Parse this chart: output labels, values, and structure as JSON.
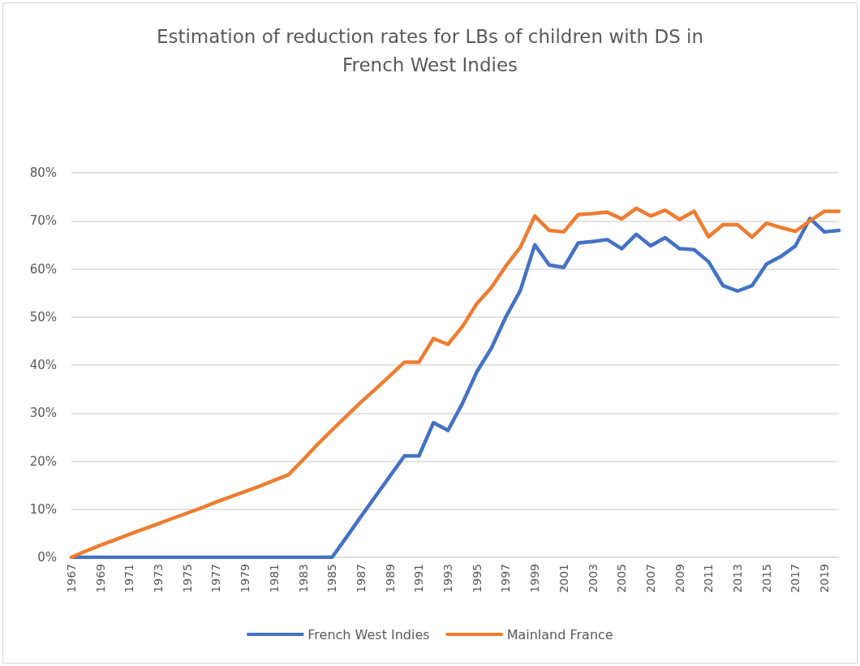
{
  "chart_data": {
    "type": "line",
    "title": "Estimation of reduction rates for LBs of children with DS in\nFrench West Indies",
    "categories": [
      "1967",
      null,
      "1969",
      null,
      "1971",
      null,
      "1973",
      null,
      "1975",
      null,
      "1977",
      null,
      "1979",
      null,
      "1981",
      null,
      "1983",
      null,
      "1985",
      null,
      "1987",
      null,
      "1989",
      null,
      "1991",
      null,
      "1993",
      null,
      "1995",
      null,
      "1997",
      null,
      "1999",
      null,
      "2001",
      null,
      "2003",
      null,
      "2005",
      null,
      "2007",
      null,
      "2009",
      null,
      "2011",
      null,
      "2013",
      null,
      "2015",
      null,
      "2017",
      null,
      "2019",
      null
    ],
    "series": [
      {
        "name": "French West Indies",
        "color": "#4472c4",
        "values": [
          0,
          0,
          0,
          0,
          0,
          0,
          0,
          0,
          0,
          0,
          0,
          0,
          0,
          0,
          0,
          0,
          0,
          0,
          0,
          4.2,
          8.5,
          12.7,
          16.9,
          21.1,
          21.1,
          28,
          26.4,
          32,
          38.6,
          43.5,
          50,
          55.5,
          65,
          60.8,
          60.3,
          65.4,
          65.7,
          66.1,
          64.2,
          67.2,
          64.8,
          66.5,
          64.2,
          64,
          61.5,
          56.5,
          55.4,
          56.5,
          61,
          62.6,
          64.8,
          70.5,
          67.7,
          68
        ]
      },
      {
        "name": "Mainland France",
        "color": "#ed7d31",
        "values": [
          0,
          1.3,
          2.5,
          3.6,
          4.8,
          5.9,
          7.0,
          8.1,
          9.2,
          10.3,
          11.5,
          12.6,
          13.7,
          14.8,
          16.0,
          17.2,
          20.3,
          23.5,
          26.5,
          29.4,
          32.3,
          35,
          37.8,
          40.6,
          40.6,
          45.5,
          44.3,
          48,
          52.8,
          56.1,
          60.6,
          64.5,
          71,
          68,
          67.7,
          71.3,
          71.5,
          71.8,
          70.4,
          72.6,
          71,
          72.2,
          70.3,
          72,
          66.7,
          69.2,
          69.2,
          66.6,
          69.5,
          68.6,
          67.8,
          70,
          72,
          72
        ]
      }
    ],
    "ylim": [
      0,
      80
    ],
    "yticks": [
      {
        "value": 0,
        "label": "0%"
      },
      {
        "value": 10,
        "label": "10%"
      },
      {
        "value": 20,
        "label": "20%"
      },
      {
        "value": 30,
        "label": "30%"
      },
      {
        "value": 40,
        "label": "40%"
      },
      {
        "value": 50,
        "label": "50%"
      },
      {
        "value": 60,
        "label": "60%"
      },
      {
        "value": 70,
        "label": "70%"
      },
      {
        "value": 80,
        "label": "80%"
      }
    ],
    "grid": "y",
    "legend": "bottom",
    "marker": "none",
    "line_style": "solid"
  }
}
